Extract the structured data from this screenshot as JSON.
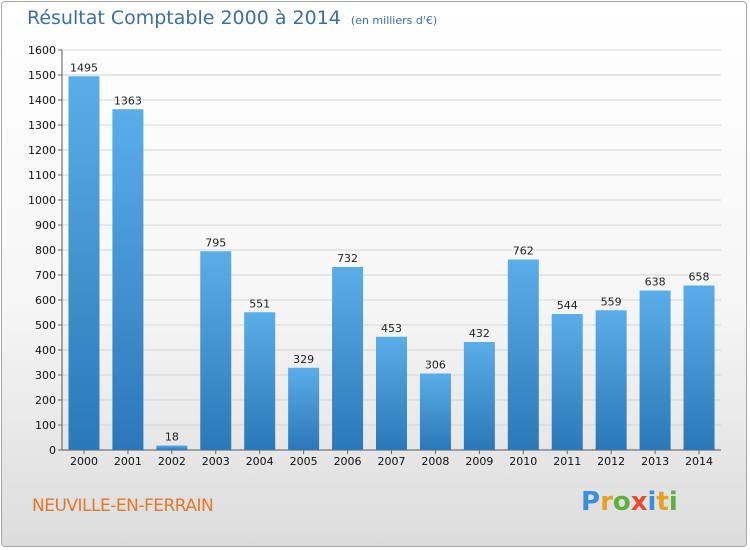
{
  "header": {
    "title": "Résultat Comptable 2000 à 2014",
    "unit": "(en milliers d'€)"
  },
  "footer": {
    "commune": "NEUVILLE-EN-FERRAIN",
    "logo_text": "Proxiti"
  },
  "colors": {
    "bar_light": "#5aaee8",
    "bar_dark": "#2a78b8",
    "title": "#3a6fa8",
    "commune": "#e07a2a",
    "grid": "#d4d4d4"
  },
  "chart_data": {
    "type": "bar",
    "title": "Résultat Comptable 2000 à 2014",
    "subtitle": "(en milliers d'€)",
    "categories": [
      "2000",
      "2001",
      "2002",
      "2003",
      "2004",
      "2005",
      "2006",
      "2007",
      "2008",
      "2009",
      "2010",
      "2011",
      "2012",
      "2013",
      "2014"
    ],
    "values": [
      1495,
      1363,
      18,
      795,
      551,
      329,
      732,
      453,
      306,
      432,
      762,
      544,
      559,
      638,
      658
    ],
    "ylim": [
      0,
      1600
    ],
    "yticks": [
      0,
      100,
      200,
      300,
      400,
      500,
      600,
      700,
      800,
      900,
      1000,
      1100,
      1200,
      1300,
      1400,
      1500,
      1600
    ],
    "grid": true,
    "data_labels": true
  }
}
